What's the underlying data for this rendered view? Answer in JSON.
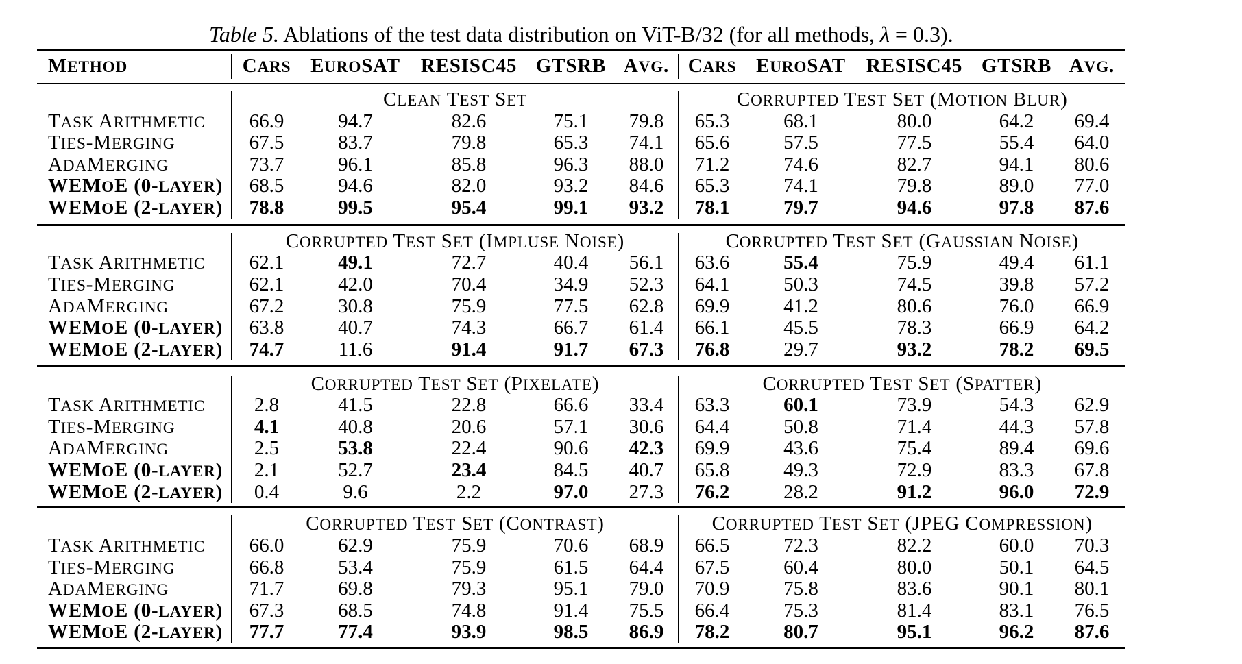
{
  "page": {
    "background_color": "#ffffff",
    "text_color": "#000000"
  },
  "caption": {
    "full_text": "Table 5. Ablations of the test data distribution on ViT-B/32 (for all methods, λ = 0.3).",
    "segments": [
      {
        "text": "Table 5.",
        "italic": true
      },
      {
        "text": " Ablations of the test data distribution on ViT-B/32 (for all methods, ",
        "italic": false
      },
      {
        "text": "λ",
        "italic": true
      },
      {
        "text": " = 0.3).",
        "italic": false
      }
    ]
  },
  "table": {
    "method_header": "Method",
    "column_headers": [
      "Cars",
      "EuroSAT",
      "RESISC45",
      "GTSRB",
      "Avg."
    ],
    "row_labels": [
      {
        "label": "Task Arithmetic",
        "bold": false
      },
      {
        "label": "Ties-Merging",
        "bold": false
      },
      {
        "label": "AdaMerging",
        "bold": false
      },
      {
        "label": "WEMoE (0-layer)",
        "bold": true
      },
      {
        "label": "WEMoE (2-layer)",
        "bold": true
      }
    ],
    "sections": [
      {
        "block": 0,
        "side": "left",
        "title": "Clean Test Set",
        "values": [
          [
            "66.9",
            "94.7",
            "82.6",
            "75.1",
            "79.8"
          ],
          [
            "67.5",
            "83.7",
            "79.8",
            "65.3",
            "74.1"
          ],
          [
            "73.7",
            "96.1",
            "85.8",
            "96.3",
            "88.0"
          ],
          [
            "68.5",
            "94.6",
            "82.0",
            "93.2",
            "84.6"
          ],
          [
            "78.8",
            "99.5",
            "95.4",
            "99.1",
            "93.2"
          ]
        ],
        "bold": [
          [
            0,
            0,
            0,
            0,
            0
          ],
          [
            0,
            0,
            0,
            0,
            0
          ],
          [
            0,
            0,
            0,
            0,
            0
          ],
          [
            0,
            0,
            0,
            0,
            0
          ],
          [
            1,
            1,
            1,
            1,
            1
          ]
        ]
      },
      {
        "block": 0,
        "side": "right",
        "title": "Corrupted Test Set (Motion Blur)",
        "values": [
          [
            "65.3",
            "68.1",
            "80.0",
            "64.2",
            "69.4"
          ],
          [
            "65.6",
            "57.5",
            "77.5",
            "55.4",
            "64.0"
          ],
          [
            "71.2",
            "74.6",
            "82.7",
            "94.1",
            "80.6"
          ],
          [
            "65.3",
            "74.1",
            "79.8",
            "89.0",
            "77.0"
          ],
          [
            "78.1",
            "79.7",
            "94.6",
            "97.8",
            "87.6"
          ]
        ],
        "bold": [
          [
            0,
            0,
            0,
            0,
            0
          ],
          [
            0,
            0,
            0,
            0,
            0
          ],
          [
            0,
            0,
            0,
            0,
            0
          ],
          [
            0,
            0,
            0,
            0,
            0
          ],
          [
            1,
            1,
            1,
            1,
            1
          ]
        ]
      },
      {
        "block": 1,
        "side": "left",
        "title": "Corrupted Test Set (Impluse Noise)",
        "values": [
          [
            "62.1",
            "49.1",
            "72.7",
            "40.4",
            "56.1"
          ],
          [
            "62.1",
            "42.0",
            "70.4",
            "34.9",
            "52.3"
          ],
          [
            "67.2",
            "30.8",
            "75.9",
            "77.5",
            "62.8"
          ],
          [
            "63.8",
            "40.7",
            "74.3",
            "66.7",
            "61.4"
          ],
          [
            "74.7",
            "11.6",
            "91.4",
            "91.7",
            "67.3"
          ]
        ],
        "bold": [
          [
            0,
            1,
            0,
            0,
            0
          ],
          [
            0,
            0,
            0,
            0,
            0
          ],
          [
            0,
            0,
            0,
            0,
            0
          ],
          [
            0,
            0,
            0,
            0,
            0
          ],
          [
            1,
            0,
            1,
            1,
            1
          ]
        ]
      },
      {
        "block": 1,
        "side": "right",
        "title": "Corrupted Test Set (Gaussian Noise)",
        "values": [
          [
            "63.6",
            "55.4",
            "75.9",
            "49.4",
            "61.1"
          ],
          [
            "64.1",
            "50.3",
            "74.5",
            "39.8",
            "57.2"
          ],
          [
            "69.9",
            "41.2",
            "80.6",
            "76.0",
            "66.9"
          ],
          [
            "66.1",
            "45.5",
            "78.3",
            "66.9",
            "64.2"
          ],
          [
            "76.8",
            "29.7",
            "93.2",
            "78.2",
            "69.5"
          ]
        ],
        "bold": [
          [
            0,
            1,
            0,
            0,
            0
          ],
          [
            0,
            0,
            0,
            0,
            0
          ],
          [
            0,
            0,
            0,
            0,
            0
          ],
          [
            0,
            0,
            0,
            0,
            0
          ],
          [
            1,
            0,
            1,
            1,
            1
          ]
        ]
      },
      {
        "block": 2,
        "side": "left",
        "title": "Corrupted Test Set (Pixelate)",
        "values": [
          [
            "2.8",
            "41.5",
            "22.8",
            "66.6",
            "33.4"
          ],
          [
            "4.1",
            "40.8",
            "20.6",
            "57.1",
            "30.6"
          ],
          [
            "2.5",
            "53.8",
            "22.4",
            "90.6",
            "42.3"
          ],
          [
            "2.1",
            "52.7",
            "23.4",
            "84.5",
            "40.7"
          ],
          [
            "0.4",
            "9.6",
            "2.2",
            "97.0",
            "27.3"
          ]
        ],
        "bold": [
          [
            0,
            0,
            0,
            0,
            0
          ],
          [
            1,
            0,
            0,
            0,
            0
          ],
          [
            0,
            1,
            0,
            0,
            1
          ],
          [
            0,
            0,
            1,
            0,
            0
          ],
          [
            0,
            0,
            0,
            1,
            0
          ]
        ]
      },
      {
        "block": 2,
        "side": "right",
        "title": "Corrupted Test Set (Spatter)",
        "values": [
          [
            "63.3",
            "60.1",
            "73.9",
            "54.3",
            "62.9"
          ],
          [
            "64.4",
            "50.8",
            "71.4",
            "44.3",
            "57.8"
          ],
          [
            "69.9",
            "43.6",
            "75.4",
            "89.4",
            "69.6"
          ],
          [
            "65.8",
            "49.3",
            "72.9",
            "83.3",
            "67.8"
          ],
          [
            "76.2",
            "28.2",
            "91.2",
            "96.0",
            "72.9"
          ]
        ],
        "bold": [
          [
            0,
            1,
            0,
            0,
            0
          ],
          [
            0,
            0,
            0,
            0,
            0
          ],
          [
            0,
            0,
            0,
            0,
            0
          ],
          [
            0,
            0,
            0,
            0,
            0
          ],
          [
            1,
            0,
            1,
            1,
            1
          ]
        ]
      },
      {
        "block": 3,
        "side": "left",
        "title": "Corrupted Test Set (Contrast)",
        "values": [
          [
            "66.0",
            "62.9",
            "75.9",
            "70.6",
            "68.9"
          ],
          [
            "66.8",
            "53.4",
            "75.9",
            "61.5",
            "64.4"
          ],
          [
            "71.7",
            "69.8",
            "79.3",
            "95.1",
            "79.0"
          ],
          [
            "67.3",
            "68.5",
            "74.8",
            "91.4",
            "75.5"
          ],
          [
            "77.7",
            "77.4",
            "93.9",
            "98.5",
            "86.9"
          ]
        ],
        "bold": [
          [
            0,
            0,
            0,
            0,
            0
          ],
          [
            0,
            0,
            0,
            0,
            0
          ],
          [
            0,
            0,
            0,
            0,
            0
          ],
          [
            0,
            0,
            0,
            0,
            0
          ],
          [
            1,
            1,
            1,
            1,
            1
          ]
        ]
      },
      {
        "block": 3,
        "side": "right",
        "title": "Corrupted Test Set (JPEG Compression)",
        "values": [
          [
            "66.5",
            "72.3",
            "82.2",
            "60.0",
            "70.3"
          ],
          [
            "67.5",
            "60.4",
            "80.0",
            "50.1",
            "64.5"
          ],
          [
            "70.9",
            "75.8",
            "83.6",
            "90.1",
            "80.1"
          ],
          [
            "66.4",
            "75.3",
            "81.4",
            "83.1",
            "76.5"
          ],
          [
            "78.2",
            "80.7",
            "95.1",
            "96.2",
            "87.6"
          ]
        ],
        "bold": [
          [
            0,
            0,
            0,
            0,
            0
          ],
          [
            0,
            0,
            0,
            0,
            0
          ],
          [
            0,
            0,
            0,
            0,
            0
          ],
          [
            0,
            0,
            0,
            0,
            0
          ],
          [
            1,
            1,
            1,
            1,
            1
          ]
        ]
      }
    ]
  }
}
